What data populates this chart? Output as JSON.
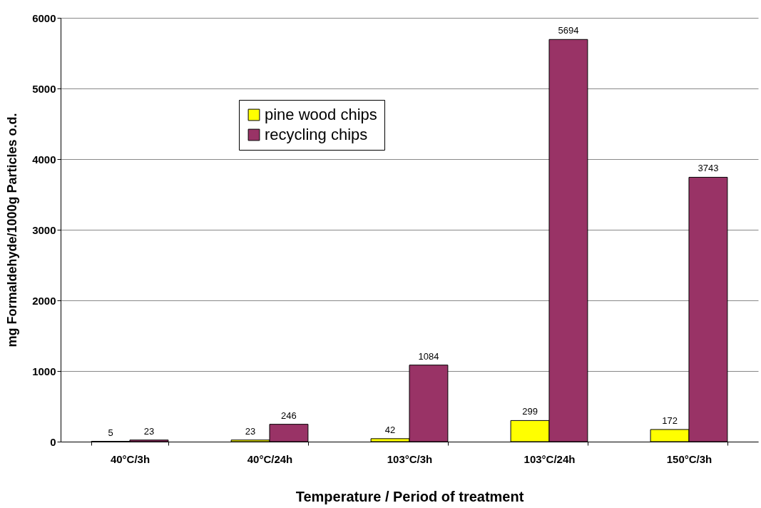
{
  "chart_data": {
    "type": "bar",
    "xlabel": "Temperature / Period of treatment",
    "ylabel": "mg Formaldehyde/1000g Particles o.d.",
    "categories": [
      "40°C/3h",
      "40°C/24h",
      "103°C/3h",
      "103°C/24h",
      "150°C/3h"
    ],
    "series": [
      {
        "name": "pine wood chips",
        "color": "#ffff00",
        "values": [
          5,
          23,
          42,
          299,
          172
        ]
      },
      {
        "name": "recycling chips",
        "color": "#993366",
        "values": [
          23,
          246,
          1084,
          5694,
          3743
        ]
      }
    ],
    "ylim": [
      0,
      6000
    ],
    "yticks": [
      0,
      1000,
      2000,
      3000,
      4000,
      5000,
      6000
    ],
    "grid": "y",
    "legend": "top left",
    "data_labels": true
  }
}
